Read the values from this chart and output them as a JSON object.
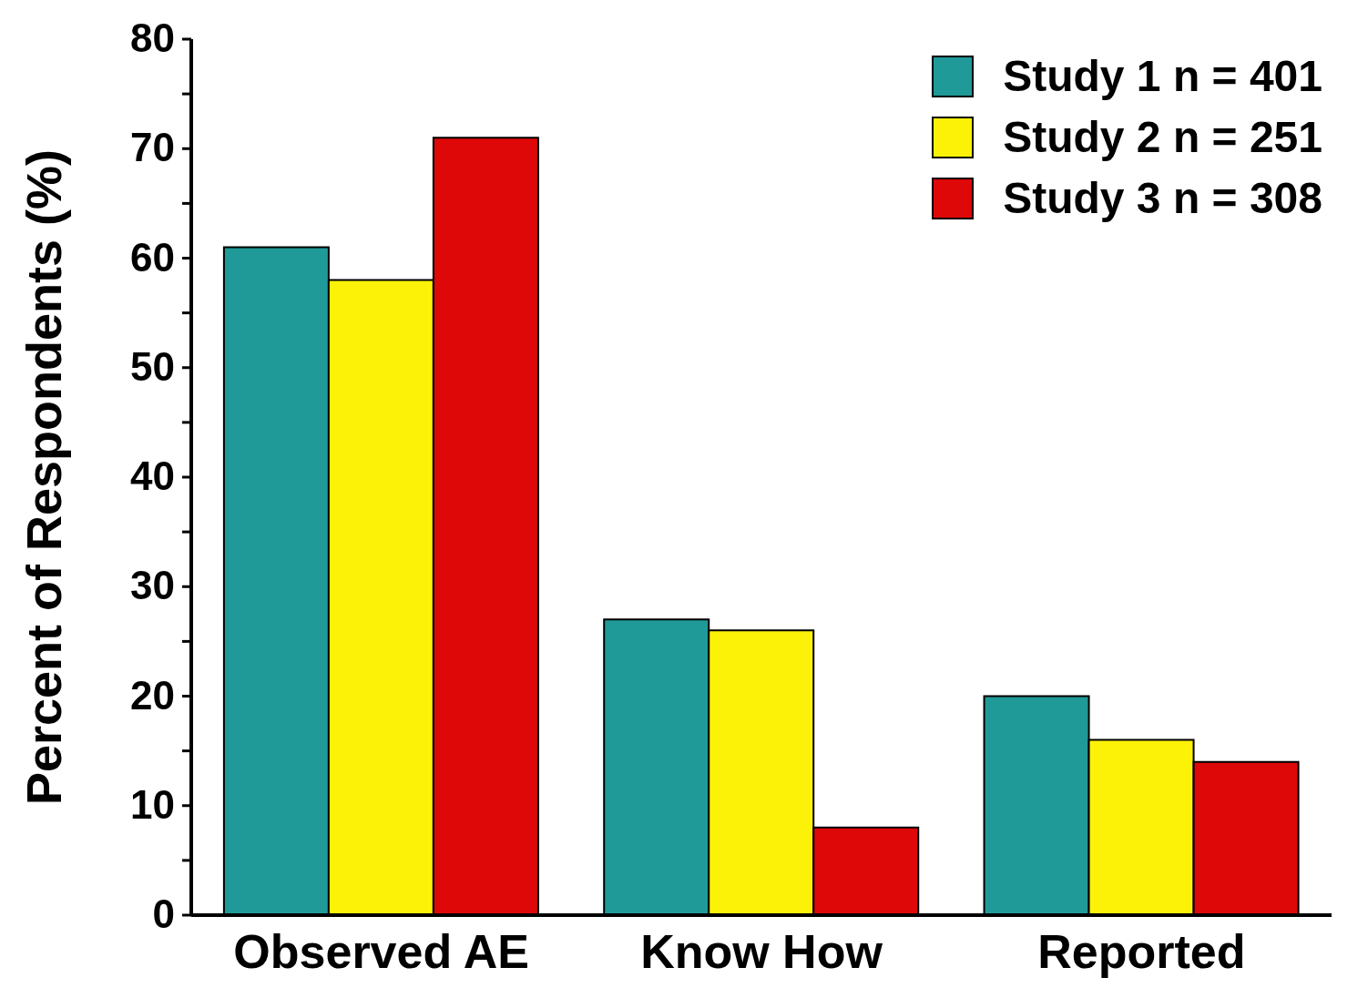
{
  "chart_data": {
    "type": "bar",
    "ylabel": "Percent of Respondents (%)",
    "categories": [
      "Observed AE",
      "Know How",
      "Reported"
    ],
    "series": [
      {
        "name": "Study 1 n = 401",
        "color": "#1f9a98",
        "values": [
          61,
          27,
          20
        ]
      },
      {
        "name": "Study 2 n = 251",
        "color": "#fcf208",
        "values": [
          58,
          26,
          16
        ]
      },
      {
        "name": "Study 3 n = 308",
        "color": "#de0808",
        "values": [
          71,
          8,
          14
        ]
      }
    ],
    "ylim": [
      0,
      80
    ],
    "yticks": [
      0,
      {
        "value": 5,
        "label": null
      },
      10,
      {
        "value": 15,
        "label": null
      },
      20,
      {
        "value": 25,
        "label": null
      },
      30,
      {
        "value": 35,
        "label": null
      },
      40,
      {
        "value": 45,
        "label": null
      },
      50,
      {
        "value": 55,
        "label": null
      },
      60,
      {
        "value": 65,
        "label": null
      },
      70,
      {
        "value": 75,
        "label": null
      },
      80
    ],
    "grid": false,
    "legend": "top right"
  }
}
